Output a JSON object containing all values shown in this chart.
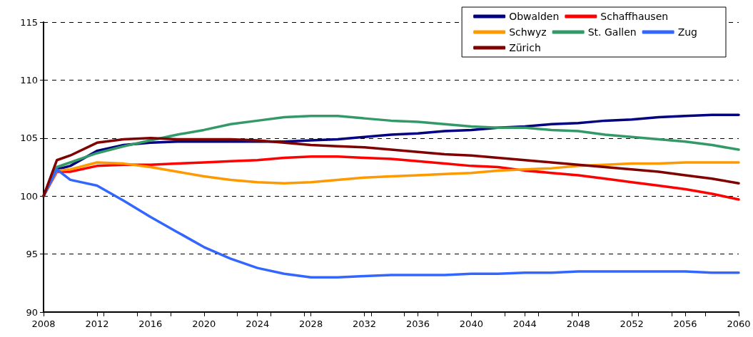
{
  "chart_data": {
    "type": "line",
    "x": [
      2008,
      2009,
      2010,
      2012,
      2014,
      2016,
      2018,
      2020,
      2022,
      2024,
      2026,
      2028,
      2030,
      2032,
      2034,
      2036,
      2038,
      2040,
      2042,
      2044,
      2046,
      2048,
      2050,
      2052,
      2054,
      2056,
      2058,
      2060
    ],
    "series": [
      {
        "name": "Obwalden",
        "color": "#000080",
        "values": [
          100,
          102.3,
          102.6,
          103.9,
          104.4,
          104.6,
          104.7,
          104.7,
          104.7,
          104.7,
          104.7,
          104.8,
          104.9,
          105.1,
          105.3,
          105.4,
          105.6,
          105.7,
          105.9,
          106.0,
          106.2,
          106.3,
          106.5,
          106.6,
          106.8,
          106.9,
          107.0,
          107.0
        ]
      },
      {
        "name": "Schaffhausen",
        "color": "#ff0000",
        "values": [
          100,
          102.1,
          102.1,
          102.6,
          102.7,
          102.7,
          102.8,
          102.9,
          103.0,
          103.1,
          103.3,
          103.4,
          103.4,
          103.3,
          103.2,
          103.0,
          102.8,
          102.6,
          102.5,
          102.2,
          102.0,
          101.8,
          101.5,
          101.2,
          100.9,
          100.6,
          100.2,
          99.7
        ]
      },
      {
        "name": "Schwyz",
        "color": "#ff9900",
        "values": [
          100,
          102.2,
          102.3,
          102.9,
          102.8,
          102.5,
          102.1,
          101.7,
          101.4,
          101.2,
          101.1,
          101.2,
          101.4,
          101.6,
          101.7,
          101.8,
          101.9,
          102.0,
          102.2,
          102.3,
          102.4,
          102.6,
          102.7,
          102.8,
          102.8,
          102.9,
          102.9,
          102.9
        ]
      },
      {
        "name": "St. Gallen",
        "color": "#339966",
        "values": [
          100,
          102.5,
          102.9,
          103.7,
          104.3,
          104.8,
          105.3,
          105.7,
          106.2,
          106.5,
          106.8,
          106.9,
          106.9,
          106.7,
          106.5,
          106.4,
          106.2,
          106.0,
          105.9,
          105.9,
          105.7,
          105.6,
          105.3,
          105.1,
          104.9,
          104.7,
          104.4,
          104.0
        ]
      },
      {
        "name": "Zug",
        "color": "#3366ff",
        "values": [
          100,
          102.3,
          101.4,
          100.9,
          99.6,
          98.2,
          96.9,
          95.6,
          94.6,
          93.8,
          93.3,
          93.0,
          93.0,
          93.1,
          93.2,
          93.2,
          93.2,
          93.3,
          93.3,
          93.4,
          93.4,
          93.5,
          93.5,
          93.5,
          93.5,
          93.5,
          93.4,
          93.4
        ]
      },
      {
        "name": "Zürich",
        "color": "#800000",
        "values": [
          100,
          103.1,
          103.5,
          104.6,
          104.9,
          105.0,
          104.9,
          104.9,
          104.9,
          104.8,
          104.6,
          104.4,
          104.3,
          104.2,
          104.0,
          103.8,
          103.6,
          103.5,
          103.3,
          103.1,
          102.9,
          102.7,
          102.5,
          102.3,
          102.1,
          101.8,
          101.5,
          101.1
        ]
      }
    ],
    "xlim": [
      2008,
      2060
    ],
    "xticks": [
      2008,
      2012,
      2016,
      2020,
      2024,
      2028,
      2032,
      2036,
      2040,
      2044,
      2048,
      2052,
      2056,
      2060
    ],
    "ylim": [
      90,
      115
    ],
    "yticks": [
      90,
      95,
      100,
      105,
      110,
      115
    ],
    "grid": "y",
    "legend": "top right",
    "marker": "none",
    "line_style": "solid"
  }
}
